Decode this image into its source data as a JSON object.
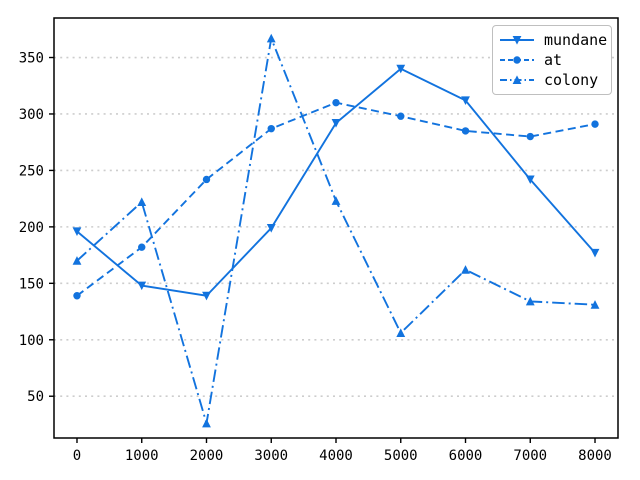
{
  "chart_data": {
    "type": "line",
    "title": "",
    "xlabel": "",
    "ylabel": "",
    "x": [
      0,
      1000,
      2000,
      3000,
      4000,
      5000,
      6000,
      7000,
      8000
    ],
    "series": [
      {
        "name": "mundane",
        "marker": "triangle-down",
        "linestyle": "solid",
        "values": [
          196,
          148,
          139,
          199,
          292,
          340,
          312,
          242,
          177
        ]
      },
      {
        "name": "at",
        "marker": "circle",
        "linestyle": "dashed",
        "values": [
          139,
          182,
          242,
          287,
          310,
          298,
          285,
          280,
          291
        ]
      },
      {
        "name": "colony",
        "marker": "triangle-up",
        "linestyle": "dashdot",
        "values": [
          170,
          222,
          26,
          367,
          223,
          106,
          162,
          134,
          131
        ]
      }
    ],
    "xticks": [
      0,
      1000,
      2000,
      3000,
      4000,
      5000,
      6000,
      7000,
      8000
    ],
    "xtick_labels": [
      "0",
      "1000",
      "2000",
      "3000",
      "4000",
      "5000",
      "6000",
      "7000",
      "8000"
    ],
    "yticks": [
      50,
      100,
      150,
      200,
      250,
      300,
      350
    ],
    "ytick_labels": [
      "50",
      "100",
      "150",
      "200",
      "250",
      "300",
      "350"
    ],
    "xlim": [
      -355,
      8355
    ],
    "ylim": [
      13,
      385
    ],
    "grid": "horizontal-dotted",
    "legend_position": "top-right",
    "colors": {
      "line": "#1273de",
      "grid": "#cdcdcd",
      "spine": "#000000",
      "text": "#000000",
      "background": "#ffffff",
      "legend_border": "#bfbfbf"
    }
  }
}
